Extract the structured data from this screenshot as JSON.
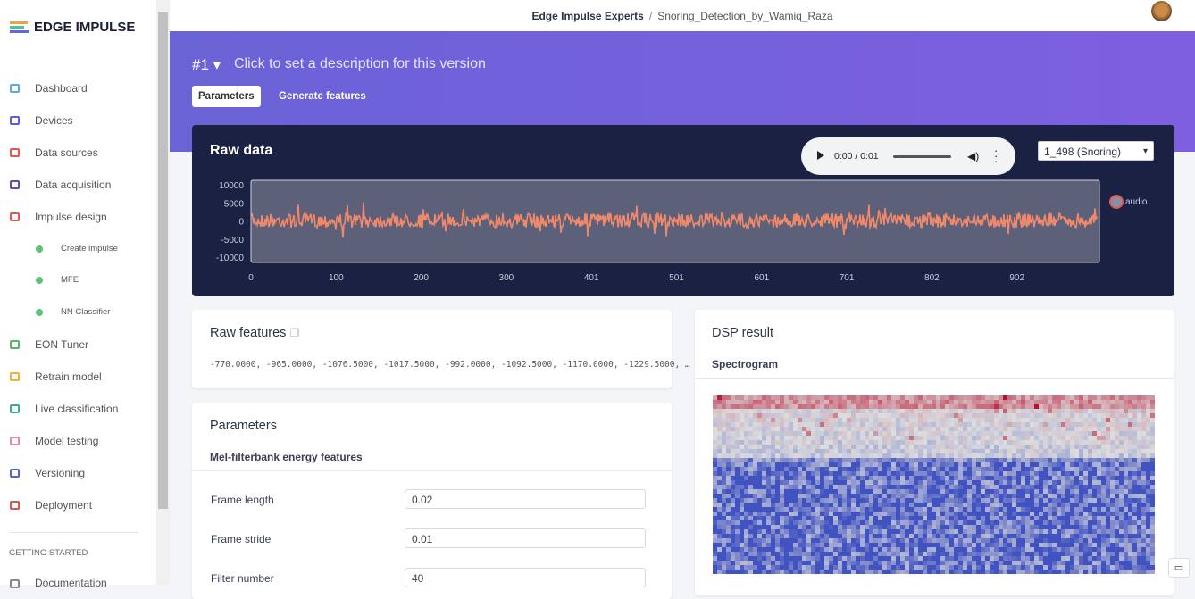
{
  "header": {
    "logo": "EDGE IMPULSE",
    "owner": "Edge Impulse Experts",
    "separator": "/",
    "project": "Snoring_Detection_by_Wamiq_Raza"
  },
  "sidebar": {
    "nav_top": [
      "Dashboard",
      "Devices",
      "Data sources",
      "Data acquisition",
      "Impulse design"
    ],
    "impulse_steps": [
      "Create impulse",
      "MFE",
      "NN Classifier"
    ],
    "nav_bottom": [
      "EON Tuner",
      "Retrain model",
      "Live classification",
      "Model testing",
      "Versioning",
      "Deployment"
    ],
    "section": "GETTING STARTED",
    "section_items": [
      "Documentation"
    ]
  },
  "version": {
    "number": "#1",
    "description": "Click to set a description for this version",
    "tabs": [
      "Parameters",
      "Generate features"
    ]
  },
  "raw_data": {
    "title": "Raw data",
    "audio_time": "0:00 / 0:01",
    "sample": "1_498 (Snoring)",
    "y_ticks": [
      10000,
      5000,
      0,
      -5000,
      -10000
    ],
    "x_ticks": [
      0,
      100,
      200,
      300,
      401,
      501,
      601,
      701,
      802,
      902
    ],
    "legend": "audio"
  },
  "raw_features": {
    "title": "Raw features",
    "text": "-770.0000, -965.0000, -1076.5000, -1017.5000, -992.0000, -1092.5000, -1170.0000, -1229.5000, …"
  },
  "parameters": {
    "title": "Parameters",
    "subtitle": "Mel-filterbank energy features",
    "fields": [
      {
        "label": "Frame length",
        "value": 0.02
      },
      {
        "label": "Frame stride",
        "value": 0.01
      },
      {
        "label": "Filter number",
        "value": 40
      }
    ]
  },
  "dsp": {
    "title": "DSP result",
    "subtitle": "Spectrogram"
  }
}
